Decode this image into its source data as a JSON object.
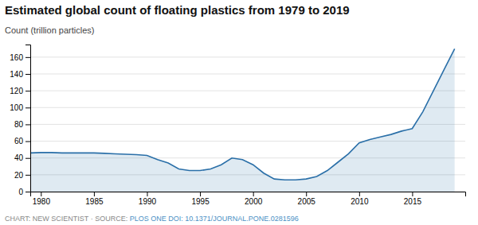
{
  "chart_data": {
    "type": "area",
    "title": "Estimated global count of floating plastics from 1979 to 2019",
    "ylabel": "Count (trillion particles)",
    "annotations": [
      "CHART: NEW SCIENTIST · SOURCE: ",
      "PLOS ONE DOI: 10.1371/JOURNAL.PONE.0281596"
    ],
    "x": [
      1979,
      1980,
      1981,
      1982,
      1983,
      1984,
      1985,
      1986,
      1987,
      1988,
      1989,
      1990,
      1991,
      1992,
      1993,
      1994,
      1995,
      1996,
      1997,
      1998,
      1999,
      2000,
      2001,
      2002,
      2003,
      2004,
      2005,
      2006,
      2007,
      2008,
      2009,
      2010,
      2011,
      2012,
      2013,
      2014,
      2015,
      2016,
      2017,
      2018,
      2019
    ],
    "values": [
      46,
      46.5,
      46.5,
      46,
      46,
      46,
      46,
      45.5,
      45,
      44.5,
      44,
      43,
      38,
      34,
      27,
      25,
      25,
      27,
      32,
      40,
      38,
      32,
      22,
      15,
      14,
      14,
      15,
      18,
      25,
      35,
      45,
      58,
      62,
      65,
      68,
      72,
      75,
      95,
      120,
      145,
      170
    ],
    "color": "#2a6fa8",
    "xlim": [
      1979,
      2020
    ],
    "xticks": [
      1980,
      1985,
      1990,
      1995,
      2000,
      2005,
      2010,
      2015
    ],
    "ylim": [
      0,
      175
    ],
    "yticks": [
      0,
      20,
      40,
      60,
      80,
      100,
      120,
      140,
      160
    ],
    "grid": true
  }
}
